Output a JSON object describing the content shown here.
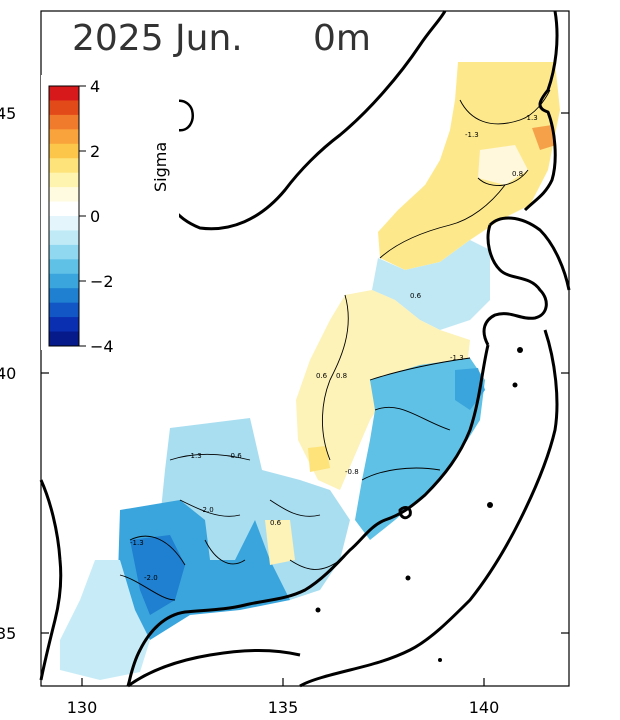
{
  "title": {
    "date": "2025 Jun.",
    "depth": "0m"
  },
  "map": {
    "lon_range": [
      129,
      142
    ],
    "lat_range": [
      33.2,
      46.9
    ],
    "x_ticks": [
      "130",
      "135",
      "140"
    ],
    "y_ticks": [
      "45",
      "40",
      "35"
    ],
    "y_ticks_left_partial": [
      "45",
      "40",
      "35"
    ]
  },
  "colorbar": {
    "label": "Sigma",
    "ticks": [
      "4",
      "2",
      "0",
      "−2",
      "−4"
    ],
    "range": [
      -4,
      4
    ],
    "colors": [
      "#d7191c",
      "#e34a1a",
      "#f07b2c",
      "#f8a33b",
      "#fcc64a",
      "#fde37a",
      "#fff3b0",
      "#fffbe0",
      "#ffffff",
      "#e4f6fb",
      "#bfeaf6",
      "#8fd8ef",
      "#5fc1e6",
      "#3aa5dc",
      "#1f7fd0",
      "#1156c4",
      "#0a2fb0",
      "#061a8a"
    ]
  },
  "contour_labels": [
    "-1.3",
    "-1.3",
    "0.8",
    "0.6",
    "0.6",
    "0.8",
    "-1.3",
    "-0.6",
    "-1.3",
    "-2.0",
    "-0.8",
    "-2.0",
    "-1.3",
    "0.6"
  ]
}
